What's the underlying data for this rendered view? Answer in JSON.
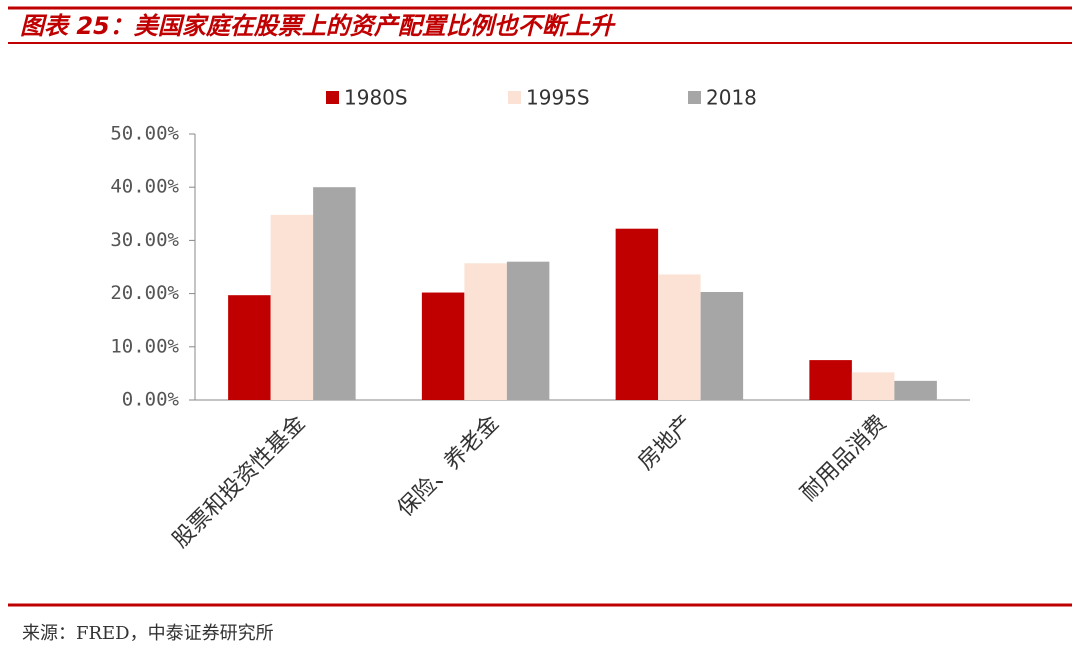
{
  "chart_data": {
    "type": "bar",
    "title": "图表 25：美国家庭在股票上的资产配置比例也不断上升",
    "source": "来源：FRED，中泰证券研究所",
    "categories": [
      "股票和投资性基金",
      "保险、养老金",
      "房地产",
      "耐用品消费"
    ],
    "series": [
      {
        "name": "1980S",
        "color": "#c00000",
        "values": [
          19.7,
          20.2,
          32.2,
          7.5
        ]
      },
      {
        "name": "1995S",
        "color": "#fbe2d5",
        "values": [
          34.8,
          25.7,
          23.6,
          5.2
        ]
      },
      {
        "name": "2018",
        "color": "#a6a6a6",
        "values": [
          40.0,
          26.0,
          20.3,
          3.6
        ]
      }
    ],
    "ylim": [
      0,
      50
    ],
    "yticks": [
      {
        "value": 0,
        "label": "0.00%"
      },
      {
        "value": 10,
        "label": "10.00%"
      },
      {
        "value": 20,
        "label": "20.00%"
      },
      {
        "value": 30,
        "label": "30.00%"
      },
      {
        "value": 40,
        "label": "40.00%"
      },
      {
        "value": 50,
        "label": "50.00%"
      }
    ],
    "legend": "top",
    "grid": false
  }
}
